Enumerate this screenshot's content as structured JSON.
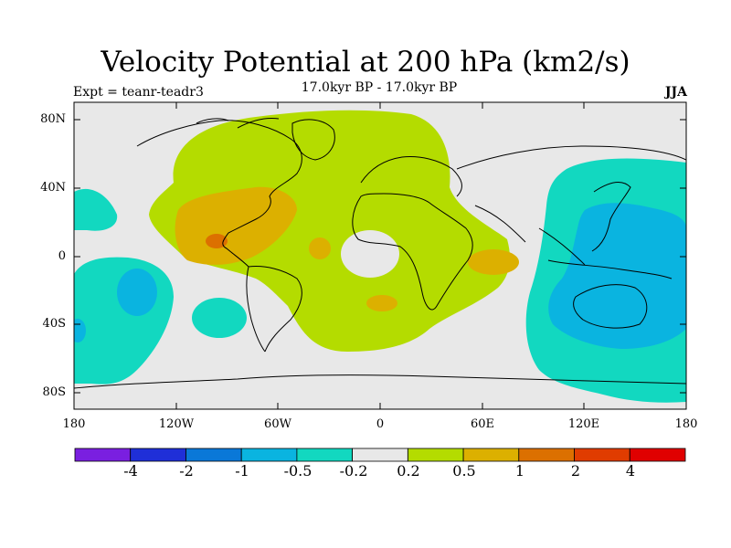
{
  "title": "Velocity Potential at 200 hPa (km2/s)",
  "subtitle": "17.0kyr BP - 17.0kyr BP",
  "experiment": "Expt = teanr-teadr3",
  "season": "JJA",
  "axes": {
    "lat_ticks": [
      "80N",
      "40N",
      "0",
      "40S",
      "80S"
    ],
    "lon_ticks": [
      "180",
      "120W",
      "60W",
      "0",
      "60E",
      "120E",
      "180"
    ]
  },
  "colorbar": {
    "labels": [
      "-4",
      "-2",
      "-1",
      "-0.5",
      "-0.2",
      "0.2",
      "0.5",
      "1",
      "2",
      "4"
    ],
    "colors": [
      "#7a1fe0",
      "#1f2fd8",
      "#0a78d8",
      "#0ab4e0",
      "#12d8c0",
      "#e8e8e8",
      "#b4dc00",
      "#dcb000",
      "#dc7000",
      "#e03c00",
      "#e00000"
    ]
  },
  "colors": {
    "neutral": "#e8e8e8",
    "pos_weak": "#b4dc00",
    "pos_mid": "#dcb000",
    "pos_strong": "#dc7000",
    "neg_weak": "#12d8c0",
    "neg_mid": "#0ab4e0",
    "coast": "#000000"
  }
}
